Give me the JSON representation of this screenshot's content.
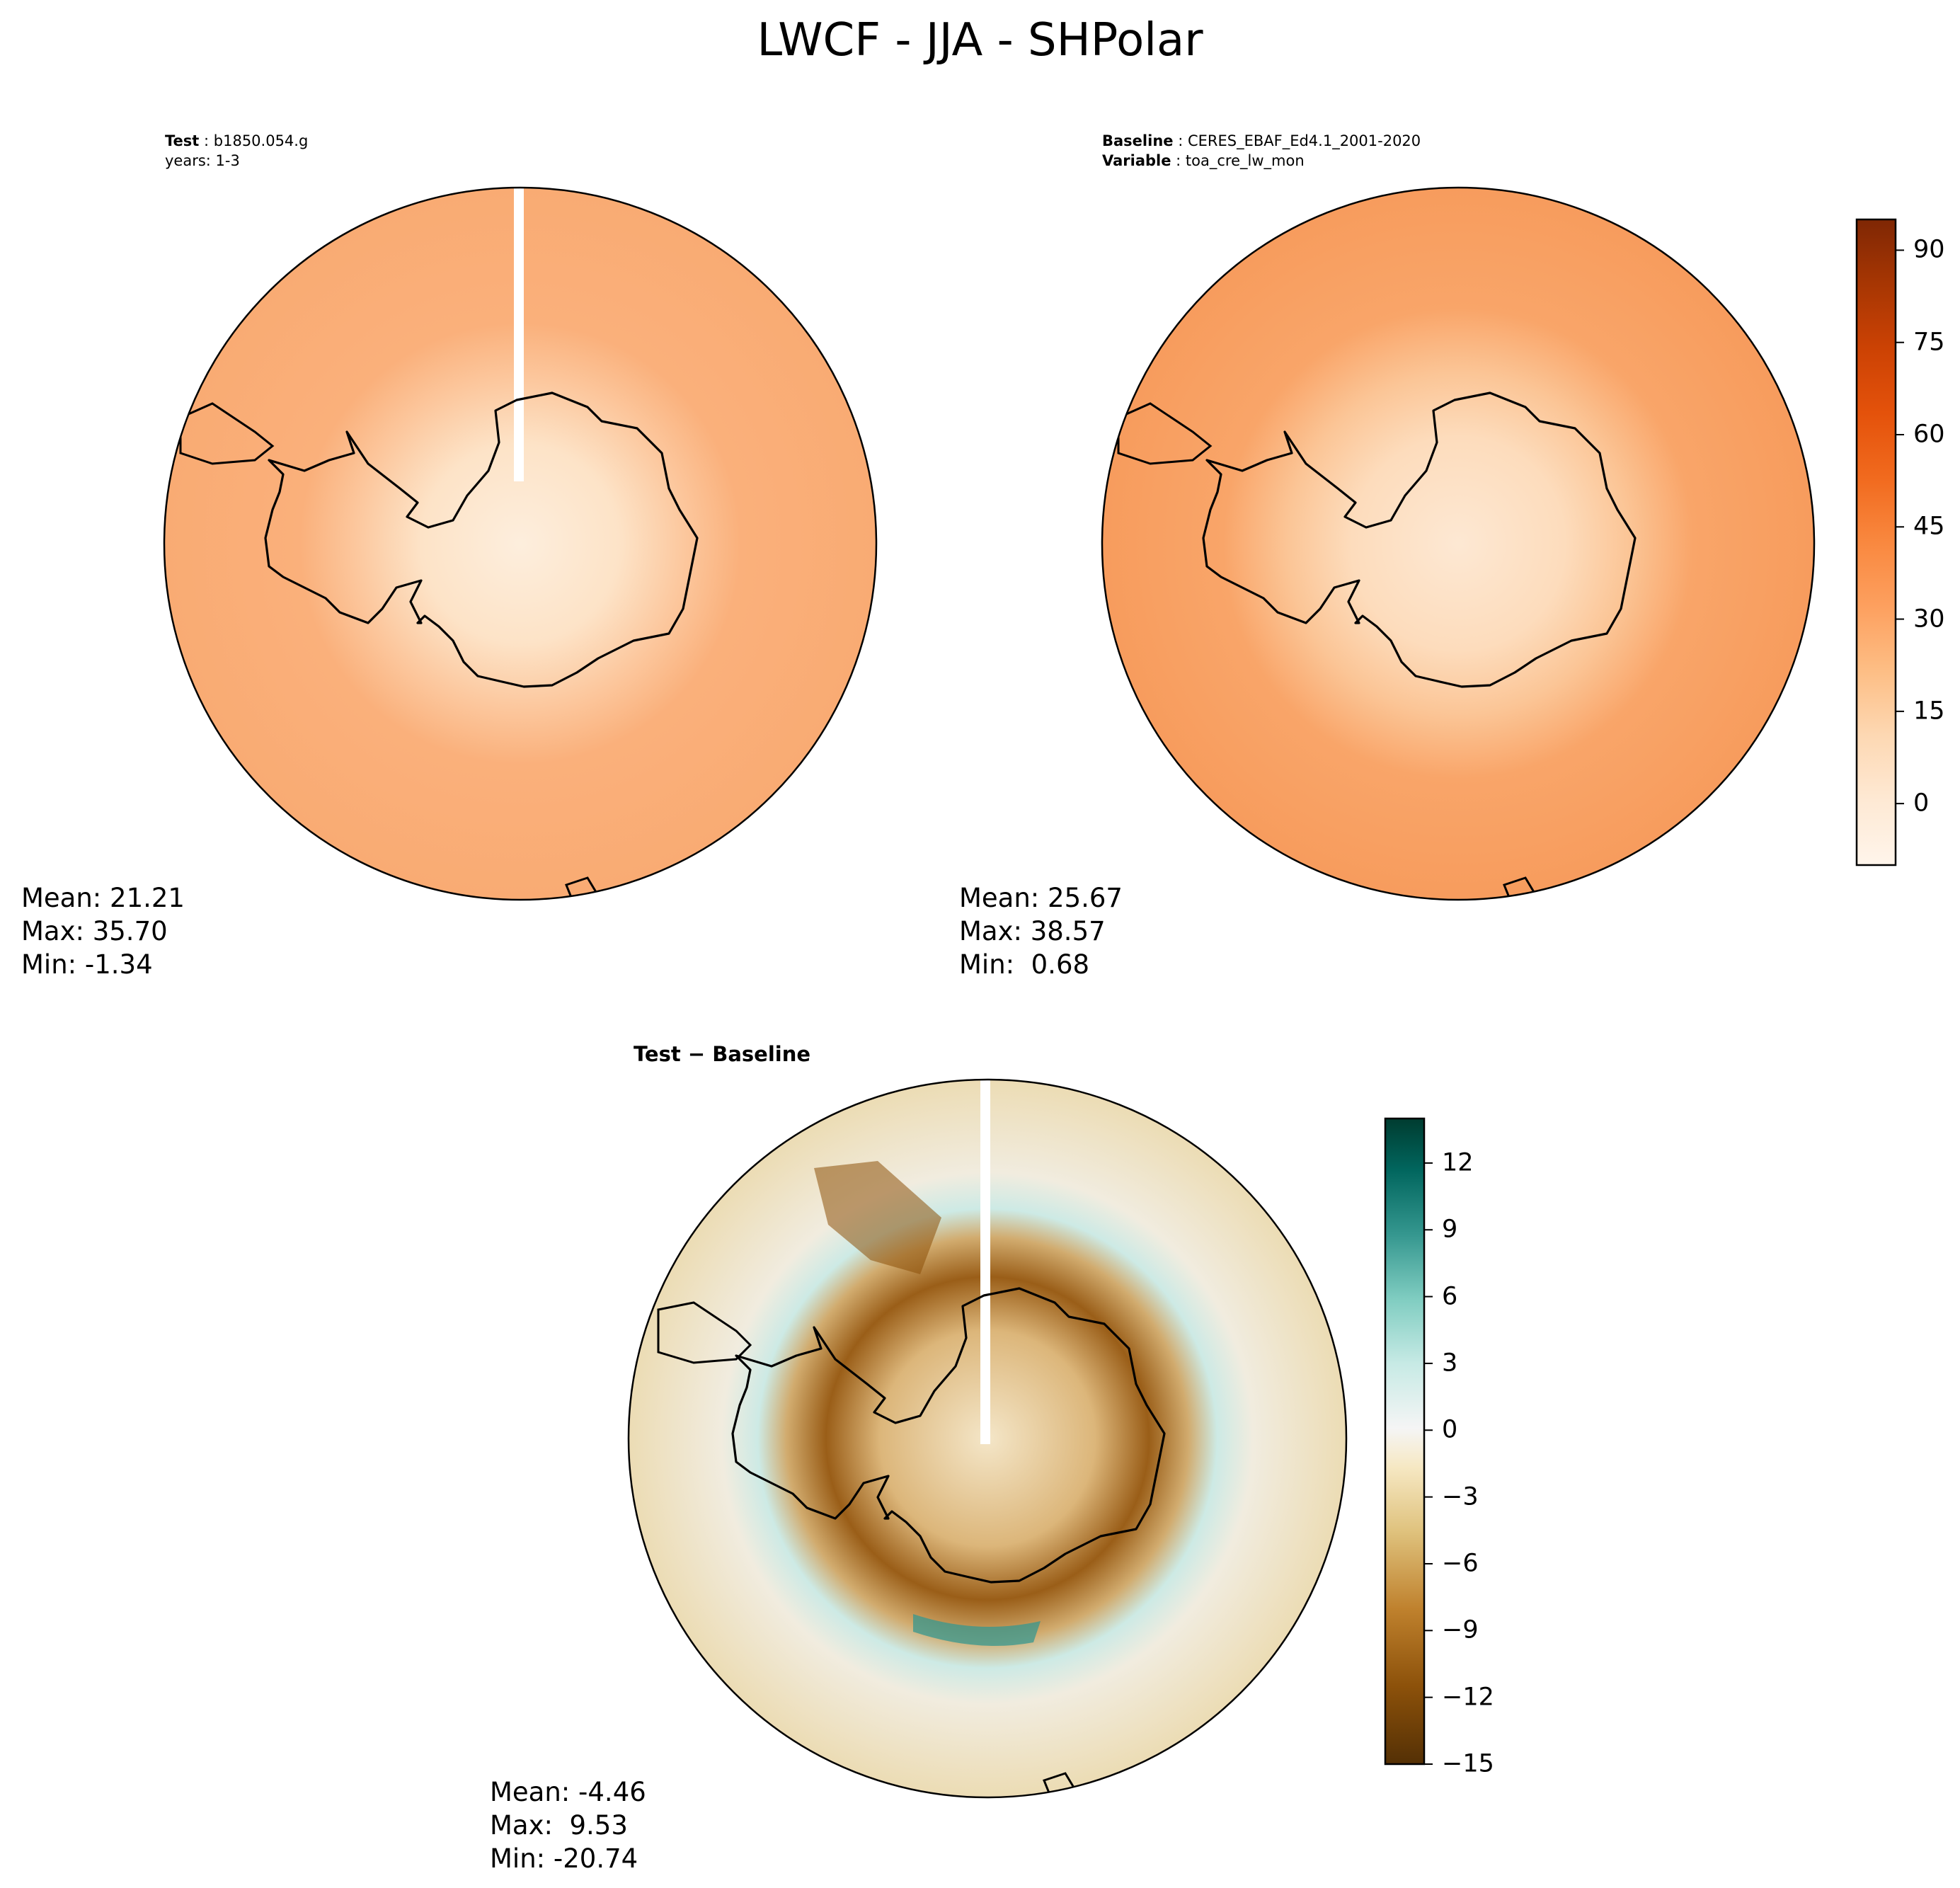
{
  "figure": {
    "title": "LWCF - JJA - SHPolar"
  },
  "panels": {
    "test": {
      "label": "Test",
      "case": "b1850.054.g",
      "years": "years: 1-3",
      "stats": {
        "mean": "Mean: 21.21",
        "max": "Max: 35.70",
        "min": "Min: -1.34"
      }
    },
    "baseline": {
      "label": "Baseline",
      "case": "CERES_EBAF_Ed4.1_2001-2020",
      "variable_label": "Variable",
      "variable": "toa_cre_lw_mon",
      "stats": {
        "mean": "Mean: 25.67",
        "max": "Max: 38.57",
        "min": "Min:  0.68"
      }
    },
    "diff": {
      "title": "Test − Baseline",
      "stats": {
        "mean": "Mean: -4.46",
        "max": "Max:  9.53",
        "min": "Min: -20.74"
      }
    }
  },
  "colorbars": {
    "main": {
      "colormap": "Oranges",
      "range": [
        -10,
        95
      ],
      "ticks": [
        "90",
        "75",
        "60",
        "45",
        "30",
        "15",
        "0"
      ],
      "colors": [
        "#fff5eb",
        "#fde9d4",
        "#fdd8b3",
        "#fdbe85",
        "#fda05f",
        "#f9883f",
        "#f16a1e",
        "#e4520b",
        "#cc4204",
        "#a73603",
        "#7f2704"
      ]
    },
    "diff": {
      "colormap": "BrBG",
      "range": [
        -15,
        14
      ],
      "ticks": [
        "12",
        "9",
        "6",
        "3",
        "0",
        "−3",
        "−6",
        "−9",
        "−12",
        "−15"
      ],
      "colors": [
        "#543005",
        "#8c510a",
        "#bf812d",
        "#dfc27d",
        "#f6e8c3",
        "#f5f5f5",
        "#c7eae5",
        "#80cdc1",
        "#35978f",
        "#01665e",
        "#003c30"
      ]
    }
  }
}
